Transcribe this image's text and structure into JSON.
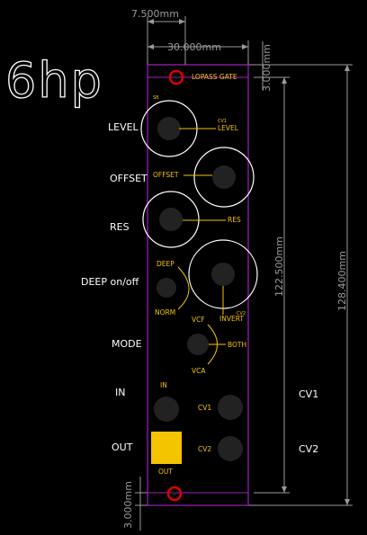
{
  "title": "6hp",
  "dimensions": {
    "width_top": "7.500mm",
    "width_panel": "30.000mm",
    "margin_top": "3.000mm",
    "margin_bottom": "3.000mm",
    "height_inner": "122.500mm",
    "height_total": "128.400mm"
  },
  "left_labels": {
    "level": "LEVEL",
    "offset": "OFFSET",
    "res": "RES",
    "deep": "DEEP on/off",
    "mode": "MODE",
    "in": "IN",
    "out": "OUT"
  },
  "right_labels": {
    "cv1": "CV1",
    "cv2": "CV2"
  },
  "panel_labels": {
    "header": "LOPASS GATE",
    "sb": "SB",
    "cv1_small": "CV1",
    "level": "LEVEL",
    "offset": "OFFSET",
    "res": "RES",
    "deep": "DEEP",
    "norm": "NORM",
    "cv2_small": "CV2",
    "invert": "INVERT",
    "vcf": "VCF",
    "both": "BOTH",
    "vca": "VCA",
    "in": "IN",
    "cv1": "CV1",
    "cv2": "CV2",
    "out": "OUT"
  },
  "colors": {
    "panel_outline": "#a020c0",
    "silkscreen": "#f5c400",
    "component": "#222222",
    "mount_hole": "#e00000",
    "dimension": "#9a9a9a"
  }
}
